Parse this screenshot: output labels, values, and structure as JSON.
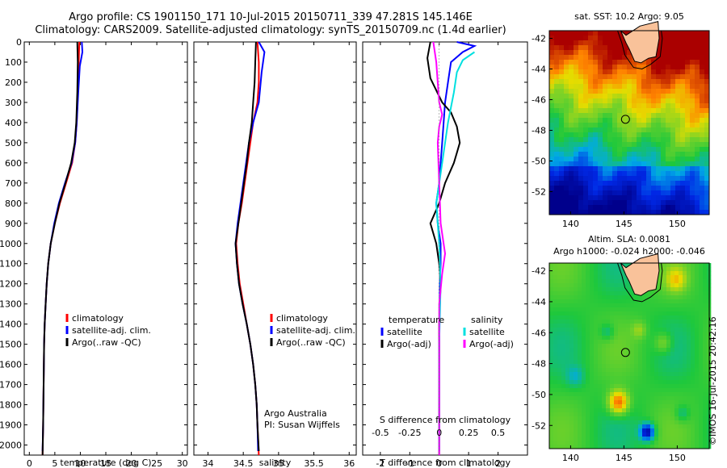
{
  "header": {
    "title_line1": "Argo profile: CS 1901150_171 10-Jul-2015 20150711_339 47.281S 145.146E",
    "title_line2": "Climatology: CARS2009. Satellite-adjusted climatology: synTS_20150709.nc (1.4d earlier)"
  },
  "chart_data": [
    {
      "type": "line",
      "panel": "temperature",
      "xlabel": "temperature (deg C)",
      "xlim": [
        -1,
        31
      ],
      "xticks": [
        0,
        5,
        10,
        15,
        20,
        25,
        30
      ],
      "ylim": [
        0,
        2050
      ],
      "yticks": [
        0,
        100,
        200,
        300,
        400,
        500,
        600,
        700,
        800,
        900,
        1000,
        1100,
        1200,
        1300,
        1400,
        1500,
        1600,
        1700,
        1800,
        1900,
        2000
      ],
      "y_reversed": true,
      "legend": [
        "climatology",
        "satellite-adj. clim.",
        "Argo(..raw -QC)"
      ],
      "series": [
        {
          "name": "climatology",
          "color": "#ff0000",
          "points": [
            [
              9.8,
              0
            ],
            [
              9.7,
              100
            ],
            [
              9.5,
              250
            ],
            [
              9.3,
              400
            ],
            [
              9.0,
              500
            ],
            [
              8.4,
              600
            ],
            [
              7.2,
              700
            ],
            [
              6.0,
              800
            ],
            [
              5.0,
              900
            ],
            [
              4.2,
              1000
            ],
            [
              3.7,
              1100
            ],
            [
              3.4,
              1200
            ],
            [
              3.2,
              1300
            ],
            [
              3.0,
              1400
            ],
            [
              2.9,
              1500
            ],
            [
              2.8,
              1700
            ],
            [
              2.7,
              1900
            ],
            [
              2.6,
              2050
            ]
          ]
        },
        {
          "name": "satellite-adj. clim.",
          "color": "#0000ff",
          "points": [
            [
              10.3,
              0
            ],
            [
              10.4,
              50
            ],
            [
              9.9,
              120
            ],
            [
              9.6,
              250
            ],
            [
              9.3,
              400
            ],
            [
              9.0,
              500
            ],
            [
              8.3,
              600
            ],
            [
              7.0,
              700
            ],
            [
              5.8,
              800
            ],
            [
              4.9,
              900
            ],
            [
              4.2,
              1000
            ],
            [
              3.7,
              1100
            ],
            [
              3.4,
              1200
            ],
            [
              3.2,
              1300
            ],
            [
              3.0,
              1400
            ],
            [
              2.9,
              1500
            ],
            [
              2.8,
              1700
            ],
            [
              2.7,
              1900
            ],
            [
              2.6,
              2030
            ]
          ]
        },
        {
          "name": "Argo(..raw -QC)",
          "color": "#000000",
          "points": [
            [
              9.4,
              0
            ],
            [
              9.5,
              100
            ],
            [
              9.4,
              250
            ],
            [
              9.2,
              400
            ],
            [
              8.9,
              500
            ],
            [
              8.2,
              600
            ],
            [
              7.1,
              700
            ],
            [
              5.9,
              800
            ],
            [
              5.0,
              900
            ],
            [
              4.2,
              1000
            ],
            [
              3.7,
              1100
            ],
            [
              3.4,
              1200
            ],
            [
              3.2,
              1300
            ],
            [
              3.0,
              1400
            ],
            [
              2.9,
              1500
            ],
            [
              2.8,
              1700
            ],
            [
              2.7,
              1900
            ],
            [
              2.6,
              2050
            ]
          ]
        }
      ]
    },
    {
      "type": "line",
      "panel": "salinity",
      "xlabel": "salinity",
      "xlim": [
        33.8,
        36.1
      ],
      "xticks": [
        34,
        34.5,
        35,
        35.5,
        36
      ],
      "ylim": [
        0,
        2050
      ],
      "y_reversed": true,
      "legend": [
        "climatology",
        "satellite-adj. clim.",
        "Argo(..raw -QC)"
      ],
      "annotation_lines": [
        "Argo Australia",
        "PI: Susan Wijffels"
      ],
      "series": [
        {
          "name": "climatology",
          "color": "#ff0000",
          "points": [
            [
              34.7,
              0
            ],
            [
              34.72,
              100
            ],
            [
              34.72,
              200
            ],
            [
              34.7,
              300
            ],
            [
              34.64,
              400
            ],
            [
              34.6,
              500
            ],
            [
              34.56,
              600
            ],
            [
              34.52,
              700
            ],
            [
              34.48,
              800
            ],
            [
              34.43,
              900
            ],
            [
              34.4,
              1000
            ],
            [
              34.42,
              1100
            ],
            [
              34.45,
              1200
            ],
            [
              34.5,
              1300
            ],
            [
              34.55,
              1400
            ],
            [
              34.6,
              1500
            ],
            [
              34.64,
              1600
            ],
            [
              34.67,
              1700
            ],
            [
              34.69,
              1800
            ],
            [
              34.7,
              1900
            ],
            [
              34.72,
              2050
            ]
          ]
        },
        {
          "name": "satellite-adj. clim.",
          "color": "#0000ff",
          "points": [
            [
              34.72,
              0
            ],
            [
              34.8,
              50
            ],
            [
              34.76,
              150
            ],
            [
              34.72,
              300
            ],
            [
              34.64,
              400
            ],
            [
              34.58,
              500
            ],
            [
              34.54,
              600
            ],
            [
              34.5,
              700
            ],
            [
              34.46,
              800
            ],
            [
              34.42,
              900
            ],
            [
              34.39,
              1000
            ],
            [
              34.41,
              1100
            ],
            [
              34.44,
              1200
            ],
            [
              34.49,
              1300
            ],
            [
              34.55,
              1400
            ],
            [
              34.6,
              1500
            ],
            [
              34.64,
              1600
            ],
            [
              34.67,
              1700
            ],
            [
              34.69,
              1800
            ],
            [
              34.7,
              1900
            ],
            [
              34.71,
              2030
            ]
          ]
        },
        {
          "name": "Argo(..raw -QC)",
          "color": "#000000",
          "points": [
            [
              34.68,
              0
            ],
            [
              34.67,
              100
            ],
            [
              34.66,
              200
            ],
            [
              34.64,
              300
            ],
            [
              34.62,
              400
            ],
            [
              34.58,
              500
            ],
            [
              34.55,
              600
            ],
            [
              34.51,
              700
            ],
            [
              34.47,
              800
            ],
            [
              34.43,
              900
            ],
            [
              34.39,
              1000
            ],
            [
              34.41,
              1100
            ],
            [
              34.44,
              1200
            ],
            [
              34.49,
              1300
            ],
            [
              34.55,
              1400
            ],
            [
              34.6,
              1500
            ],
            [
              34.64,
              1600
            ],
            [
              34.67,
              1700
            ],
            [
              34.69,
              1800
            ],
            [
              34.7,
              1900
            ],
            [
              34.72,
              2030
            ]
          ]
        }
      ]
    },
    {
      "type": "line",
      "panel": "difference",
      "xlabel": "T difference from climatology",
      "xlabel_top": "S difference from climatology",
      "xlim": [
        -2.6,
        3.0
      ],
      "xticks": [
        -2,
        -1,
        0,
        1,
        2
      ],
      "xticks_S_labels": [
        "-0.5",
        "-0.25",
        "0",
        "0.25",
        "0.5"
      ],
      "xticks_S_positions": [
        -2,
        -1,
        0,
        1,
        2
      ],
      "ylim": [
        0,
        2050
      ],
      "y_reversed": true,
      "legend_left": {
        "heading": "temperature",
        "items": [
          "satellite",
          "Argo(-adj)"
        ]
      },
      "legend_right": {
        "heading": "salinity",
        "items": [
          "satellite",
          "Argo(-adj)"
        ]
      },
      "series": [
        {
          "name": "T satellite",
          "color": "#0000ff",
          "points": [
            [
              0.6,
              0
            ],
            [
              1.2,
              20
            ],
            [
              0.8,
              50
            ],
            [
              0.4,
              100
            ],
            [
              0.3,
              200
            ],
            [
              0.2,
              300
            ],
            [
              0.15,
              400
            ],
            [
              0.1,
              500
            ],
            [
              0.05,
              600
            ],
            [
              0.0,
              700
            ],
            [
              -0.1,
              800
            ],
            [
              -0.05,
              900
            ],
            [
              0.05,
              1000
            ],
            [
              0.05,
              1100
            ],
            [
              0.02,
              1200
            ],
            [
              0.0,
              1500
            ],
            [
              0.0,
              2030
            ]
          ]
        },
        {
          "name": "T Argo(-adj)",
          "color": "#000000",
          "points": [
            [
              -0.3,
              0
            ],
            [
              -0.4,
              80
            ],
            [
              -0.3,
              180
            ],
            [
              0.1,
              300
            ],
            [
              0.4,
              350
            ],
            [
              0.6,
              420
            ],
            [
              0.7,
              500
            ],
            [
              0.6,
              550
            ],
            [
              0.5,
              600
            ],
            [
              0.2,
              700
            ],
            [
              0.0,
              800
            ],
            [
              -0.3,
              900
            ],
            [
              -0.1,
              1000
            ],
            [
              0.0,
              1100
            ],
            [
              0.05,
              1200
            ],
            [
              0.0,
              1400
            ],
            [
              0.0,
              2050
            ]
          ]
        },
        {
          "name": "S satellite",
          "color": "#00e0e0",
          "points": [
            [
              1.2,
              50
            ],
            [
              0.8,
              90
            ],
            [
              0.6,
              150
            ],
            [
              0.5,
              250
            ],
            [
              0.3,
              400
            ],
            [
              0.1,
              600
            ],
            [
              -0.1,
              800
            ],
            [
              0.0,
              1000
            ],
            [
              0.05,
              1200
            ],
            [
              0.0,
              1500
            ],
            [
              0.0,
              2030
            ]
          ]
        },
        {
          "name": "S Argo(-adj)",
          "color": "#ff00ff",
          "points": [
            [
              -0.2,
              0
            ],
            [
              -0.1,
              100
            ],
            [
              -0.05,
              200
            ],
            [
              0.0,
              300
            ],
            [
              0.1,
              360
            ],
            [
              0.0,
              420
            ],
            [
              -0.05,
              500
            ],
            [
              0.0,
              700
            ],
            [
              0.05,
              900
            ],
            [
              0.2,
              1050
            ],
            [
              0.1,
              1150
            ],
            [
              0.0,
              1300
            ],
            [
              0.0,
              2050
            ]
          ]
        }
      ]
    },
    {
      "type": "heatmap",
      "panel": "sst_map",
      "title": "sat. SST: 10.2 Argo: 9.05",
      "xlim": [
        138,
        153
      ],
      "ylim": [
        -53.5,
        -41.5
      ],
      "xticks": [
        140,
        145,
        150
      ],
      "yticks": [
        -42,
        -44,
        -46,
        -48,
        -50,
        -52
      ],
      "marker": {
        "lon": 145.146,
        "lat": -47.281
      }
    },
    {
      "type": "heatmap",
      "panel": "sla_map",
      "title_line1": "Altim. SLA: 0.0081",
      "title_line2": "Argo h1000: -0.024 h2000: -0.046",
      "xlim": [
        138,
        153
      ],
      "ylim": [
        -53.5,
        -41.5
      ],
      "xticks": [
        140,
        145,
        150
      ],
      "yticks": [
        -42,
        -44,
        -46,
        -48,
        -50,
        -52
      ],
      "marker": {
        "lon": 145.146,
        "lat": -47.281
      }
    }
  ],
  "footer": {
    "stamp": "©IMOS 16-Jul-2015 20:42:16"
  }
}
